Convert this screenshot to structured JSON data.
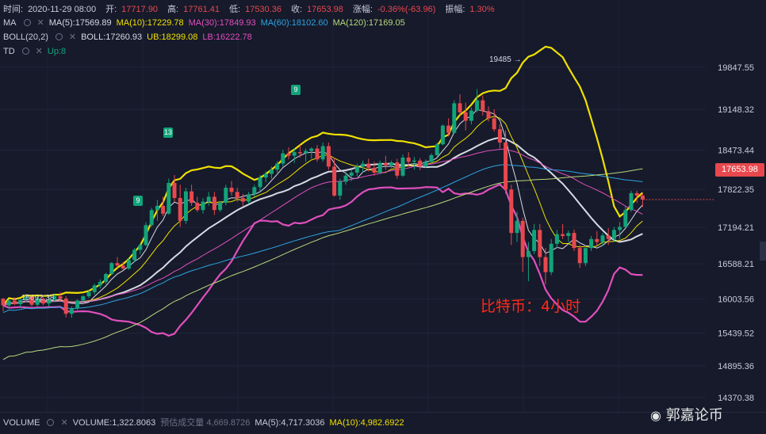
{
  "header": {
    "line1": [
      {
        "k": "时间:",
        "v": "2020-11-29 08:00",
        "c": "#c8ccd8"
      },
      {
        "k": "开:",
        "v": "17717.90",
        "c": "#e8484d"
      },
      {
        "k": "高:",
        "v": "17761.41",
        "c": "#e8484d"
      },
      {
        "k": "低:",
        "v": "17530.36",
        "c": "#e8484d"
      },
      {
        "k": "收:",
        "v": "17653.98",
        "c": "#e8484d"
      },
      {
        "k": "涨幅:",
        "v": "-0.36%(-63.96)",
        "c": "#e8484d"
      },
      {
        "k": "振幅:",
        "v": "1.30%",
        "c": "#e8484d"
      }
    ],
    "ma": {
      "name": "MA",
      "items": [
        {
          "t": "MA(5):17569.89",
          "c": "#d7dae3"
        },
        {
          "t": "MA(10):17229.78",
          "c": "#f0e000"
        },
        {
          "t": "MA(30):17849.93",
          "c": "#e14fbd"
        },
        {
          "t": "MA(60):18102.60",
          "c": "#2ea3e0"
        },
        {
          "t": "MA(120):17169.05",
          "c": "#b8d97a"
        }
      ]
    },
    "boll": {
      "name": "BOLL(20,2)",
      "items": [
        {
          "t": "BOLL:17260.93",
          "c": "#d7dae3"
        },
        {
          "t": "UB:18299.08",
          "c": "#f0e000"
        },
        {
          "t": "LB:16222.78",
          "c": "#e14fbd"
        }
      ]
    },
    "td": {
      "name": "TD",
      "items": [
        {
          "t": "Up:8",
          "c": "#12a37a"
        }
      ]
    }
  },
  "volume": {
    "name": "VOLUME",
    "items": [
      {
        "t": "VOLUME:1,322.8063",
        "c": "#c8ccd8"
      },
      {
        "t": "预估成交量 4,669.8726",
        "c": "#6b7183"
      },
      {
        "t": "MA(5):4,717.3036",
        "c": "#c8ccd8"
      },
      {
        "t": "MA(10):4,982.6922",
        "c": "#f0e000"
      }
    ]
  },
  "price_tag": "17653.98",
  "annotation": "比特币：4小时",
  "watermark": "郭嘉论币",
  "td_markers": [
    {
      "label": "9",
      "x": 168,
      "y": 247
    },
    {
      "label": "13",
      "x": 206,
      "y": 161
    },
    {
      "label": "9",
      "x": 367,
      "y": 107
    }
  ],
  "extremes": {
    "high": "19485 →",
    "low": "← 15692.38"
  },
  "chart_data": {
    "type": "candlestick",
    "y_axis": {
      "ticks": [
        "19847.55",
        "19148.32",
        "18473.44",
        "17822.35",
        "17194.21",
        "16588.21",
        "16003.56",
        "15439.52",
        "14895.36",
        "14370.38"
      ],
      "ylim": [
        14370.38,
        20280
      ]
    },
    "ohlc": [
      [
        16010,
        16020,
        15800,
        15900
      ],
      [
        15900,
        16000,
        15850,
        15980
      ],
      [
        15980,
        16030,
        15900,
        15920
      ],
      [
        15920,
        16010,
        15860,
        15990
      ],
      [
        15990,
        16070,
        15950,
        16040
      ],
      [
        16040,
        16050,
        15880,
        15910
      ],
      [
        15910,
        16050,
        15880,
        16010
      ],
      [
        16010,
        16060,
        15900,
        15930
      ],
      [
        15930,
        16040,
        15880,
        16000
      ],
      [
        16000,
        16080,
        15950,
        16050
      ],
      [
        16050,
        16120,
        15980,
        16010
      ],
      [
        16010,
        16050,
        15700,
        15760
      ],
      [
        15760,
        15880,
        15692,
        15850
      ],
      [
        15850,
        16000,
        15820,
        15980
      ],
      [
        15980,
        16070,
        15950,
        16050
      ],
      [
        16050,
        16150,
        16020,
        16120
      ],
      [
        16120,
        16260,
        16080,
        16230
      ],
      [
        16230,
        16330,
        16180,
        16290
      ],
      [
        16290,
        16440,
        16250,
        16420
      ],
      [
        16420,
        16620,
        16400,
        16600
      ],
      [
        16600,
        16700,
        16520,
        16560
      ],
      [
        16560,
        16620,
        16480,
        16510
      ],
      [
        16510,
        16680,
        16490,
        16650
      ],
      [
        16650,
        16850,
        16620,
        16820
      ],
      [
        16820,
        16930,
        16750,
        16900
      ],
      [
        16900,
        17280,
        16880,
        17230
      ],
      [
        17230,
        17520,
        17200,
        17480
      ],
      [
        17480,
        17650,
        17300,
        17550
      ],
      [
        17550,
        17700,
        17380,
        17420
      ],
      [
        17420,
        18000,
        17400,
        17930
      ],
      [
        17930,
        18060,
        17620,
        17680
      ],
      [
        17680,
        17900,
        17200,
        17300
      ],
      [
        17300,
        17850,
        17250,
        17790
      ],
      [
        17790,
        17900,
        17550,
        17600
      ],
      [
        17600,
        17700,
        17450,
        17480
      ],
      [
        17480,
        17680,
        17420,
        17620
      ],
      [
        17620,
        17780,
        17550,
        17700
      ],
      [
        17700,
        17780,
        17400,
        17480
      ],
      [
        17480,
        17630,
        17450,
        17600
      ],
      [
        17600,
        17900,
        17560,
        17850
      ],
      [
        17850,
        17960,
        17720,
        17780
      ],
      [
        17780,
        17850,
        17620,
        17680
      ],
      [
        17680,
        17750,
        17550,
        17620
      ],
      [
        17620,
        17780,
        17580,
        17740
      ],
      [
        17740,
        17900,
        17700,
        17860
      ],
      [
        17860,
        18060,
        17800,
        18020
      ],
      [
        18020,
        18120,
        17940,
        18080
      ],
      [
        18080,
        18200,
        18000,
        18150
      ],
      [
        18150,
        18290,
        18100,
        18250
      ],
      [
        18250,
        18480,
        18200,
        18420
      ],
      [
        18420,
        18520,
        18320,
        18380
      ],
      [
        18380,
        18500,
        18260,
        18440
      ],
      [
        18440,
        18560,
        18350,
        18420
      ],
      [
        18420,
        18500,
        18280,
        18460
      ],
      [
        18460,
        18520,
        18330,
        18500
      ],
      [
        18500,
        18560,
        18280,
        18320
      ],
      [
        18320,
        18600,
        18280,
        18540
      ],
      [
        18540,
        18600,
        18150,
        18200
      ],
      [
        18200,
        18350,
        17700,
        17720
      ],
      [
        17720,
        18000,
        17650,
        17950
      ],
      [
        17950,
        18120,
        17900,
        18050
      ],
      [
        18050,
        18150,
        17960,
        18100
      ],
      [
        18100,
        18250,
        18040,
        18200
      ],
      [
        18200,
        18300,
        18100,
        18250
      ],
      [
        18250,
        18330,
        18120,
        18180
      ],
      [
        18180,
        18280,
        18050,
        18100
      ],
      [
        18100,
        18300,
        18080,
        18260
      ],
      [
        18260,
        18380,
        18150,
        18220
      ],
      [
        18220,
        18300,
        18180,
        18270
      ],
      [
        18270,
        18330,
        18000,
        18050
      ],
      [
        18050,
        18400,
        18030,
        18350
      ],
      [
        18350,
        18440,
        18200,
        18280
      ],
      [
        18280,
        18360,
        18150,
        18300
      ],
      [
        18300,
        18340,
        18140,
        18200
      ],
      [
        18200,
        18320,
        18180,
        18280
      ],
      [
        18280,
        18420,
        18250,
        18390
      ],
      [
        18390,
        18600,
        18370,
        18570
      ],
      [
        18570,
        18900,
        18550,
        18880
      ],
      [
        18880,
        19000,
        18700,
        18760
      ],
      [
        18760,
        19300,
        18750,
        19250
      ],
      [
        19250,
        19400,
        19050,
        19100
      ],
      [
        19100,
        19260,
        18800,
        18960
      ],
      [
        18960,
        19180,
        18900,
        19130
      ],
      [
        19130,
        19485,
        19100,
        19300
      ],
      [
        19300,
        19380,
        19050,
        19120
      ],
      [
        19120,
        19200,
        18950,
        19000
      ],
      [
        19000,
        19150,
        18780,
        18820
      ],
      [
        18820,
        18900,
        18500,
        18600
      ],
      [
        18600,
        18800,
        17750,
        17820
      ],
      [
        17820,
        17900,
        16900,
        17100
      ],
      [
        17100,
        17450,
        16950,
        17300
      ],
      [
        17300,
        17350,
        16450,
        16700
      ],
      [
        16700,
        16950,
        16300,
        16800
      ],
      [
        16800,
        17250,
        16750,
        17150
      ],
      [
        17150,
        17250,
        16550,
        16700
      ],
      [
        16700,
        16850,
        16250,
        16450
      ],
      [
        16450,
        17000,
        16400,
        16920
      ],
      [
        16920,
        17150,
        16850,
        17080
      ],
      [
        17080,
        17250,
        17000,
        17050
      ],
      [
        17050,
        17140,
        16950,
        17100
      ],
      [
        17100,
        17160,
        16800,
        16850
      ],
      [
        16850,
        16900,
        16520,
        16600
      ],
      [
        16600,
        16900,
        16550,
        16850
      ],
      [
        16850,
        17050,
        16800,
        17000
      ],
      [
        17000,
        17130,
        16900,
        16950
      ],
      [
        16950,
        17100,
        16880,
        17060
      ],
      [
        17060,
        17180,
        16900,
        17000
      ],
      [
        17000,
        17200,
        16950,
        17150
      ],
      [
        17150,
        17280,
        17000,
        17200
      ],
      [
        17200,
        17550,
        17180,
        17480
      ],
      [
        17480,
        17800,
        17450,
        17760
      ],
      [
        17760,
        17800,
        17600,
        17720
      ],
      [
        17720,
        17761,
        17530,
        17654
      ]
    ]
  }
}
